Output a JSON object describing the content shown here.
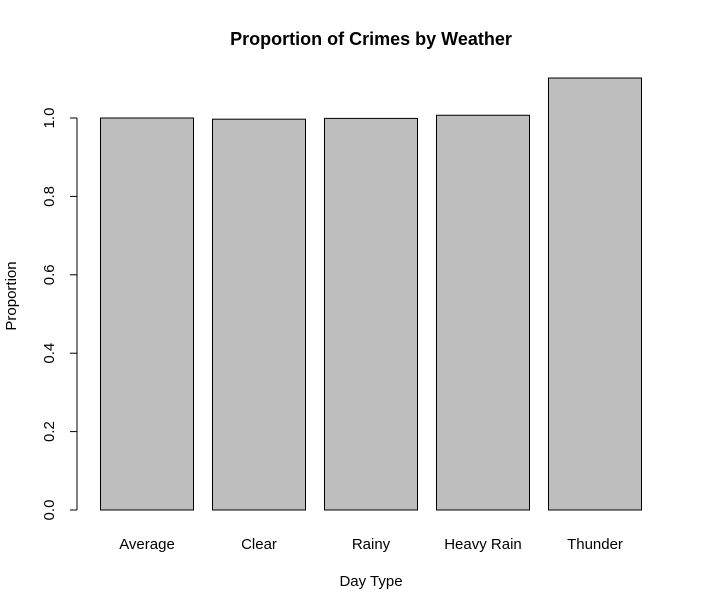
{
  "chart_data": {
    "type": "bar",
    "title": "Proportion of Crimes by Weather",
    "x_label": "Day Type",
    "y_label": "Proportion",
    "categories": [
      "Average",
      "Clear",
      "Rainy",
      "Heavy Rain",
      "Thunder"
    ],
    "values": [
      1.0,
      0.997,
      0.999,
      1.007,
      1.102
    ],
    "color": "#bebebe",
    "ylim": [
      0,
      1.14
    ],
    "yticks": [
      {
        "value": 0,
        "label": "0.0"
      },
      {
        "value": 0.2,
        "label": "0.2"
      },
      {
        "value": 0.4,
        "label": "0.4"
      },
      {
        "value": 0.6,
        "label": "0.6"
      },
      {
        "value": 0.8,
        "label": "0.8"
      },
      {
        "value": 1,
        "label": "1.0"
      }
    ],
    "grid": false
  }
}
